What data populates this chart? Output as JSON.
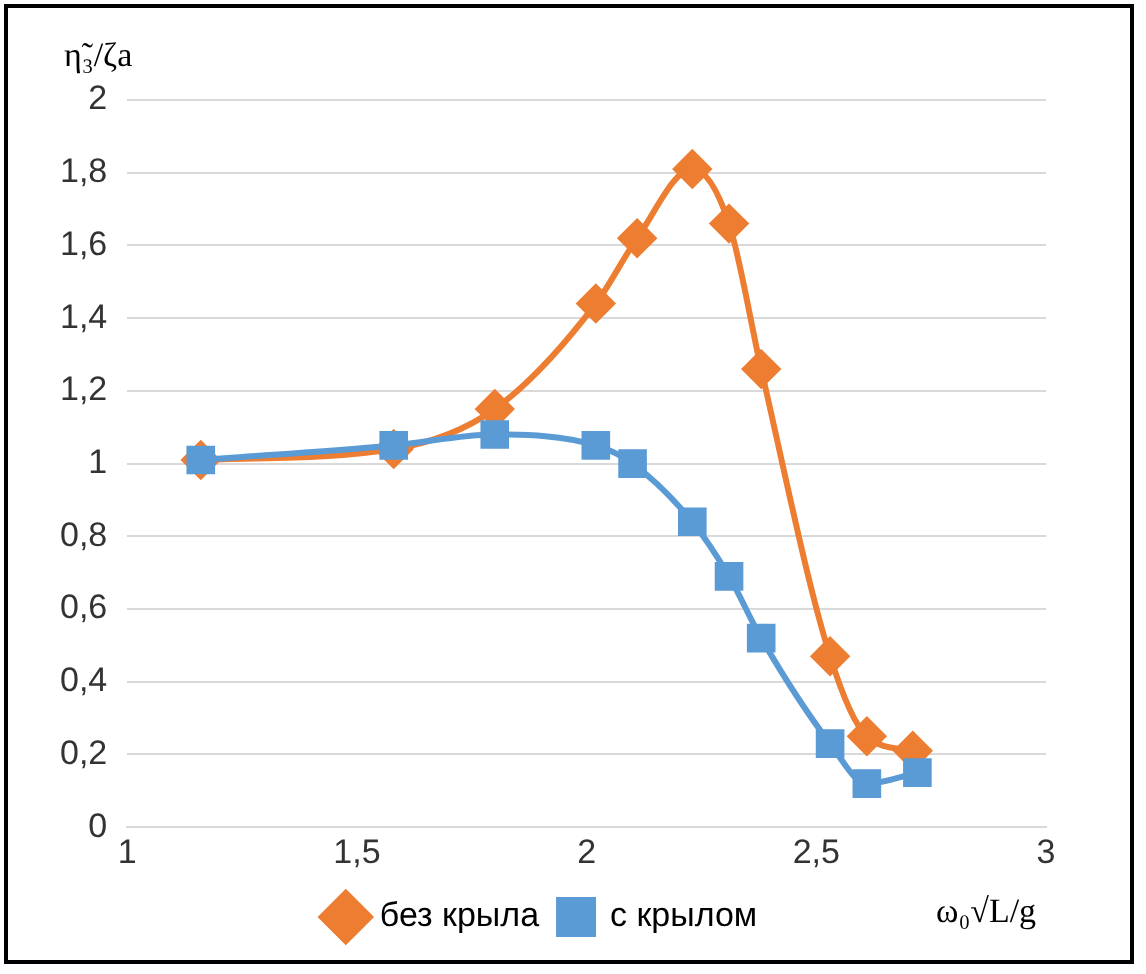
{
  "chart_data": {
    "type": "line",
    "xlabel": "ω₀√L/g",
    "ylabel": "η̃₃/ζa",
    "xlim": [
      1,
      3
    ],
    "xticks": [
      1,
      {
        "value": 1.5,
        "label": "1,5"
      },
      2,
      {
        "value": 2.5,
        "label": "2,5"
      },
      3
    ],
    "ylim": [
      0,
      2
    ],
    "yticks": [
      0,
      {
        "value": 0.2,
        "label": "0,2"
      },
      {
        "value": 0.4,
        "label": "0,4"
      },
      {
        "value": 0.6,
        "label": "0,6"
      },
      {
        "value": 0.8,
        "label": "0,8"
      },
      1,
      {
        "value": 1.2,
        "label": "1,2"
      },
      {
        "value": 1.4,
        "label": "1,4"
      },
      {
        "value": 1.6,
        "label": "1,6"
      },
      {
        "value": 1.8,
        "label": "1,8"
      },
      2
    ],
    "grid": "y",
    "legend": "bottom",
    "series": [
      {
        "name": "без крыла",
        "color": "#ed7d31",
        "marker": "diamond",
        "x": [
          1.16,
          1.58,
          1.8,
          2.02,
          2.11,
          2.23,
          2.31,
          2.38,
          2.53,
          2.61,
          2.71
        ],
        "values": [
          1.01,
          1.04,
          1.15,
          1.44,
          1.62,
          1.81,
          1.66,
          1.26,
          0.47,
          0.25,
          0.21
        ]
      },
      {
        "name": "с крылом",
        "color": "#5b9bd5",
        "marker": "square",
        "x": [
          1.16,
          1.58,
          1.8,
          2.02,
          2.1,
          2.23,
          2.31,
          2.38,
          2.53,
          2.61,
          2.72
        ],
        "values": [
          1.01,
          1.05,
          1.08,
          1.05,
          1.0,
          0.84,
          0.69,
          0.52,
          0.23,
          0.12,
          0.15
        ]
      }
    ]
  }
}
